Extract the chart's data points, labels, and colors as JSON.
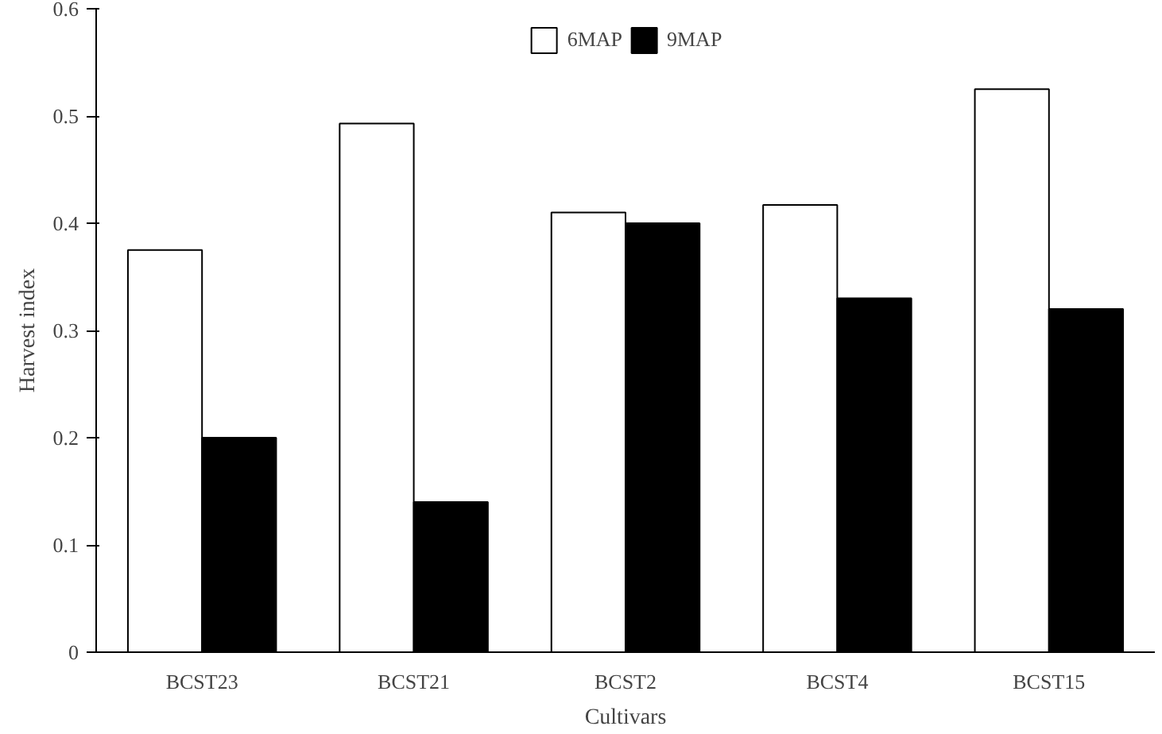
{
  "chart_data": {
    "type": "bar",
    "xlabel": "Cultivars",
    "ylabel": "Harvest index",
    "categories": [
      "BCST23",
      "BCST21",
      "BCST2",
      "BCST4",
      "BCST15"
    ],
    "series": [
      {
        "name": "6MAP",
        "color": "#ffffff",
        "values": [
          0.375,
          0.493,
          0.41,
          0.417,
          0.525
        ]
      },
      {
        "name": "9MAP",
        "color": "#000000",
        "values": [
          0.2,
          0.14,
          0.4,
          0.33,
          0.32
        ]
      }
    ],
    "ylim": [
      0,
      0.6
    ],
    "yticks": [
      0,
      0.1,
      0.2,
      0.3,
      0.4,
      0.5,
      0.6
    ],
    "grid": false,
    "legend": "top"
  }
}
